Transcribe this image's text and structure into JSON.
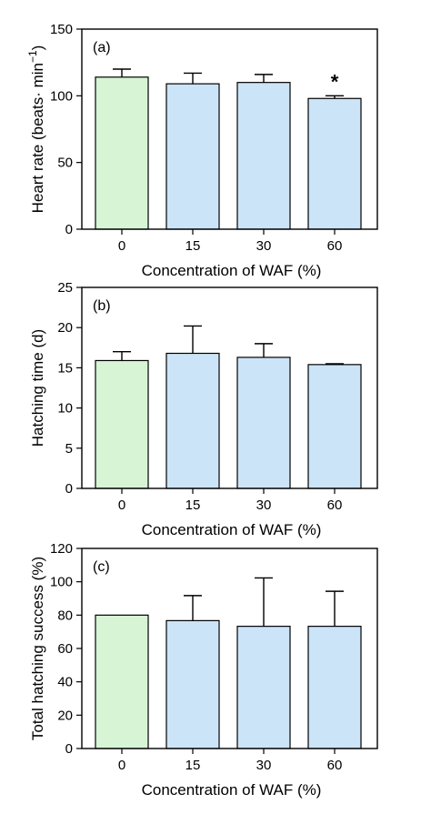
{
  "chart_data": [
    {
      "type": "bar",
      "panel_label": "(a)",
      "categories": [
        "0",
        "15",
        "30",
        "60"
      ],
      "values": [
        114,
        109,
        110,
        98
      ],
      "errors": [
        6,
        8,
        6,
        2
      ],
      "annotations": [
        "",
        "",
        "",
        "*"
      ],
      "xlabel": "Concentration of WAF (%)",
      "ylabel": "Heart rate (beats· min",
      "ylabel_sup": "−1",
      "ylabel_end": ")",
      "ylim": [
        0,
        150
      ],
      "yticks": [
        "0",
        "50",
        "100",
        "150"
      ],
      "colors": [
        "#d7f5d5",
        "#cce4f7",
        "#cce4f7",
        "#cce4f7"
      ]
    },
    {
      "type": "bar",
      "panel_label": "(b)",
      "categories": [
        "0",
        "15",
        "30",
        "60"
      ],
      "values": [
        15.9,
        16.8,
        16.3,
        15.4
      ],
      "errors": [
        1.1,
        3.4,
        1.7,
        0.1
      ],
      "annotations": [
        "",
        "",
        "",
        ""
      ],
      "xlabel": "Concentration of WAF (%)",
      "ylabel": "Hatching time (d)",
      "ylim": [
        0,
        25
      ],
      "yticks": [
        "0",
        "5",
        "10",
        "15",
        "20",
        "25"
      ],
      "colors": [
        "#d7f5d5",
        "#cce4f7",
        "#cce4f7",
        "#cce4f7"
      ]
    },
    {
      "type": "bar",
      "panel_label": "(c)",
      "categories": [
        "0",
        "15",
        "30",
        "60"
      ],
      "values": [
        80,
        76.7,
        73.3,
        73.3
      ],
      "errors": [
        0,
        15,
        29,
        21
      ],
      "annotations": [
        "",
        "",
        "",
        ""
      ],
      "xlabel": "Concentration of WAF (%)",
      "ylabel": "Total hatching success (%)",
      "ylim": [
        0,
        120
      ],
      "yticks": [
        "0",
        "20",
        "40",
        "60",
        "80",
        "100",
        "120"
      ],
      "colors": [
        "#d7f5d5",
        "#cce4f7",
        "#cce4f7",
        "#cce4f7"
      ]
    }
  ]
}
